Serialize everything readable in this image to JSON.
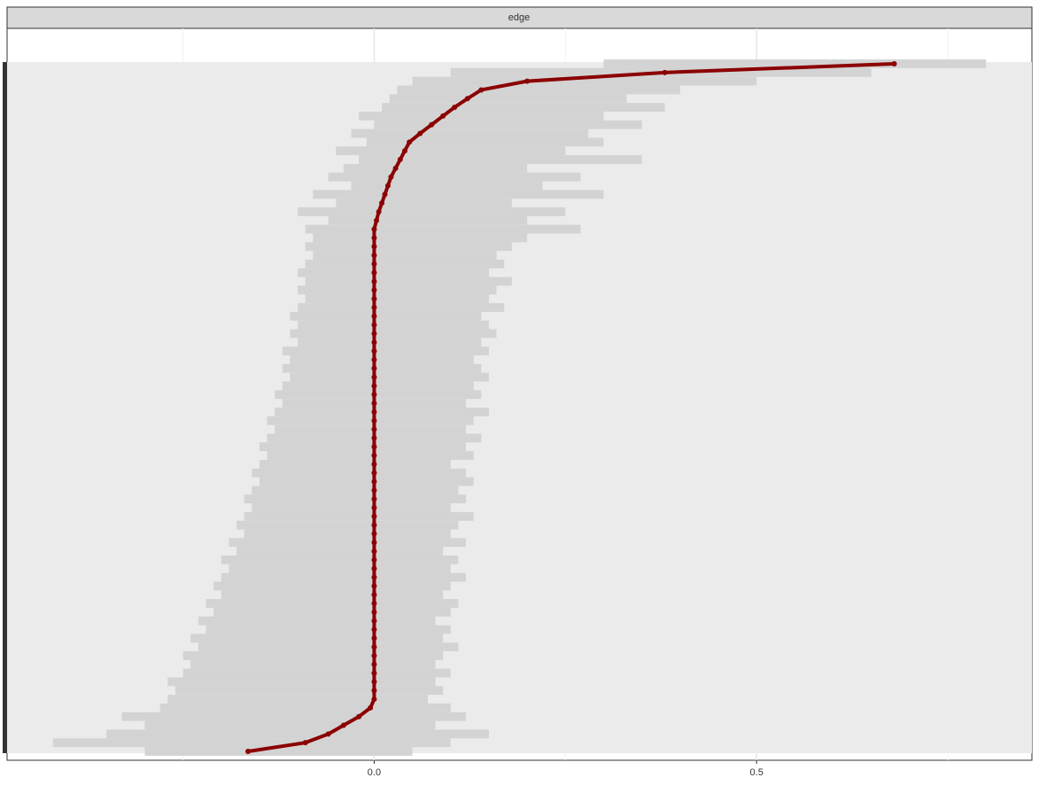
{
  "chart_data": {
    "type": "interval",
    "facet": "edge",
    "xlim": [
      -0.48,
      0.86
    ],
    "xticks": [
      {
        "value": 0,
        "label": "0.0"
      },
      {
        "value": 0.5,
        "label": "0.5"
      }
    ],
    "xminorticks": [
      -0.25,
      0.25,
      0.75
    ],
    "grid": true,
    "color": "#8b0000",
    "interval_color": "#d3d3d3",
    "values": [
      -0.165,
      -0.09,
      -0.06,
      -0.04,
      -0.02,
      -0.005,
      0,
      0,
      0,
      0,
      0,
      0,
      0,
      0,
      0,
      0,
      0,
      0,
      0,
      0,
      0,
      0,
      0,
      0,
      0,
      0,
      0,
      0,
      0,
      0,
      0,
      0,
      0,
      0,
      0,
      0,
      0,
      0,
      0,
      0,
      0,
      0,
      0,
      0,
      0,
      0,
      0,
      0,
      0,
      0,
      0,
      0,
      0,
      0,
      0,
      0,
      0,
      0,
      0,
      0,
      0,
      0.003,
      0.006,
      0.01,
      0.014,
      0.018,
      0.022,
      0.028,
      0.034,
      0.04,
      0.046,
      0.06,
      0.075,
      0.09,
      0.105,
      0.122,
      0.14,
      0.2,
      0.38,
      0.68
    ],
    "lower": [
      -0.3,
      -0.42,
      -0.35,
      -0.3,
      -0.33,
      -0.28,
      -0.27,
      -0.26,
      -0.27,
      -0.25,
      -0.24,
      -0.25,
      -0.23,
      -0.24,
      -0.22,
      -0.23,
      -0.21,
      -0.22,
      -0.2,
      -0.21,
      -0.2,
      -0.19,
      -0.2,
      -0.18,
      -0.19,
      -0.17,
      -0.18,
      -0.17,
      -0.16,
      -0.17,
      -0.16,
      -0.15,
      -0.16,
      -0.15,
      -0.14,
      -0.15,
      -0.14,
      -0.13,
      -0.14,
      -0.13,
      -0.12,
      -0.13,
      -0.12,
      -0.11,
      -0.12,
      -0.11,
      -0.12,
      -0.1,
      -0.11,
      -0.1,
      -0.11,
      -0.1,
      -0.09,
      -0.1,
      -0.09,
      -0.1,
      -0.09,
      -0.08,
      -0.09,
      -0.08,
      -0.09,
      -0.06,
      -0.1,
      -0.05,
      -0.08,
      -0.03,
      -0.06,
      -0.04,
      -0.02,
      -0.05,
      -0.01,
      -0.03,
      0,
      -0.02,
      0.01,
      0.02,
      0.03,
      0.05,
      0.1,
      0.3
    ],
    "upper": [
      0.05,
      0.1,
      0.15,
      0.08,
      0.12,
      0.1,
      0.07,
      0.09,
      0.08,
      0.1,
      0.08,
      0.09,
      0.11,
      0.09,
      0.1,
      0.08,
      0.1,
      0.11,
      0.09,
      0.1,
      0.12,
      0.1,
      0.11,
      0.09,
      0.12,
      0.1,
      0.11,
      0.13,
      0.1,
      0.12,
      0.11,
      0.13,
      0.12,
      0.1,
      0.13,
      0.12,
      0.14,
      0.12,
      0.13,
      0.15,
      0.12,
      0.14,
      0.13,
      0.15,
      0.14,
      0.13,
      0.15,
      0.14,
      0.16,
      0.15,
      0.14,
      0.17,
      0.15,
      0.16,
      0.18,
      0.15,
      0.17,
      0.16,
      0.18,
      0.2,
      0.27,
      0.2,
      0.25,
      0.18,
      0.3,
      0.22,
      0.27,
      0.2,
      0.35,
      0.25,
      0.3,
      0.28,
      0.35,
      0.3,
      0.38,
      0.33,
      0.4,
      0.5,
      0.65,
      0.8
    ]
  }
}
